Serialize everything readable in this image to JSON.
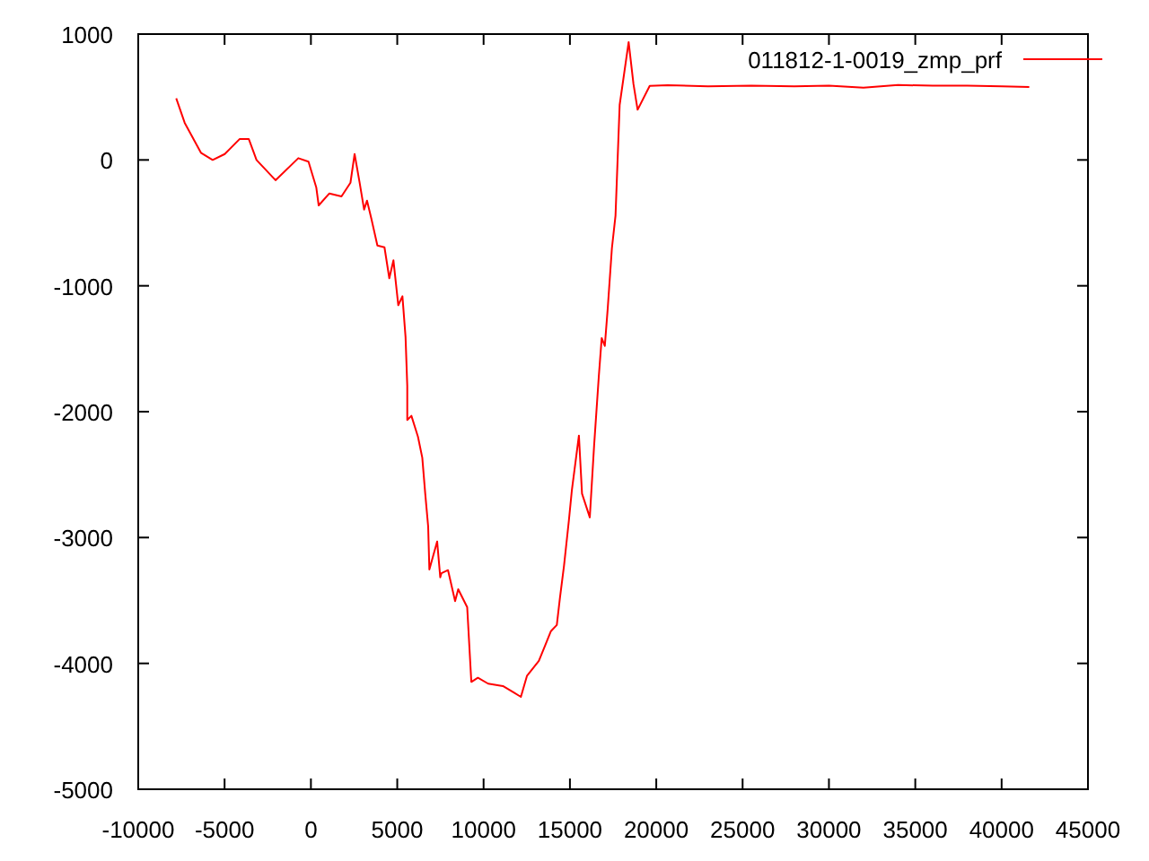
{
  "chart_data": {
    "type": "line",
    "legend": "top right",
    "grid": false,
    "xlim": [
      -10000,
      45000
    ],
    "ylim": [
      -5000,
      1000
    ],
    "xticks": [
      -10000,
      -5000,
      0,
      5000,
      10000,
      15000,
      20000,
      25000,
      30000,
      35000,
      40000,
      45000
    ],
    "yticks": [
      -5000,
      -4000,
      -3000,
      -2000,
      -1000,
      0,
      1000
    ],
    "series": [
      {
        "name": "011812-1-0019_zmp_prf",
        "color": "#ff0000",
        "x": [
          -7800,
          -7310,
          -6370,
          -5690,
          -4990,
          -4120,
          -3600,
          -3150,
          -2050,
          -730,
          -140,
          310,
          450,
          1070,
          1770,
          2290,
          2530,
          2810,
          3080,
          3250,
          3500,
          3850,
          4260,
          4540,
          4780,
          5060,
          5300,
          5480,
          5580,
          5580,
          5820,
          6200,
          6450,
          6620,
          6790,
          6860,
          7310,
          7490,
          7560,
          7940,
          8350,
          8530,
          9050,
          9290,
          9670,
          10260,
          11120,
          11750,
          12160,
          12510,
          13200,
          13550,
          13900,
          14240,
          14420,
          14660,
          14940,
          15110,
          15520,
          15700,
          16150,
          16400,
          16670,
          16840,
          17020,
          17190,
          17430,
          17640,
          17880,
          18400,
          18680,
          18920,
          19620,
          20660,
          23000,
          25500,
          28000,
          30000,
          32000,
          34000,
          36000,
          38000,
          40000,
          41600
        ],
        "values": [
          490,
          295,
          57,
          0,
          47,
          167,
          167,
          0,
          -161,
          14,
          -14,
          -218,
          -361,
          -266,
          -290,
          -181,
          47,
          -171,
          -394,
          -323,
          -466,
          -680,
          -694,
          -940,
          -798,
          -1154,
          -1083,
          -1406,
          -1796,
          -2066,
          -2033,
          -2199,
          -2366,
          -2651,
          -2912,
          -3254,
          -3031,
          -3316,
          -3283,
          -3259,
          -3506,
          -3411,
          -3553,
          -4147,
          -4114,
          -4161,
          -4180,
          -4232,
          -4266,
          -4100,
          -3980,
          -3862,
          -3744,
          -3695,
          -3482,
          -3221,
          -2864,
          -2627,
          -2190,
          -2651,
          -2840,
          -2270,
          -1724,
          -1415,
          -1478,
          -1178,
          -703,
          -442,
          437,
          936,
          603,
          399,
          589,
          594,
          585,
          590,
          585,
          590,
          575,
          595,
          590,
          590,
          585,
          580
        ]
      }
    ]
  }
}
